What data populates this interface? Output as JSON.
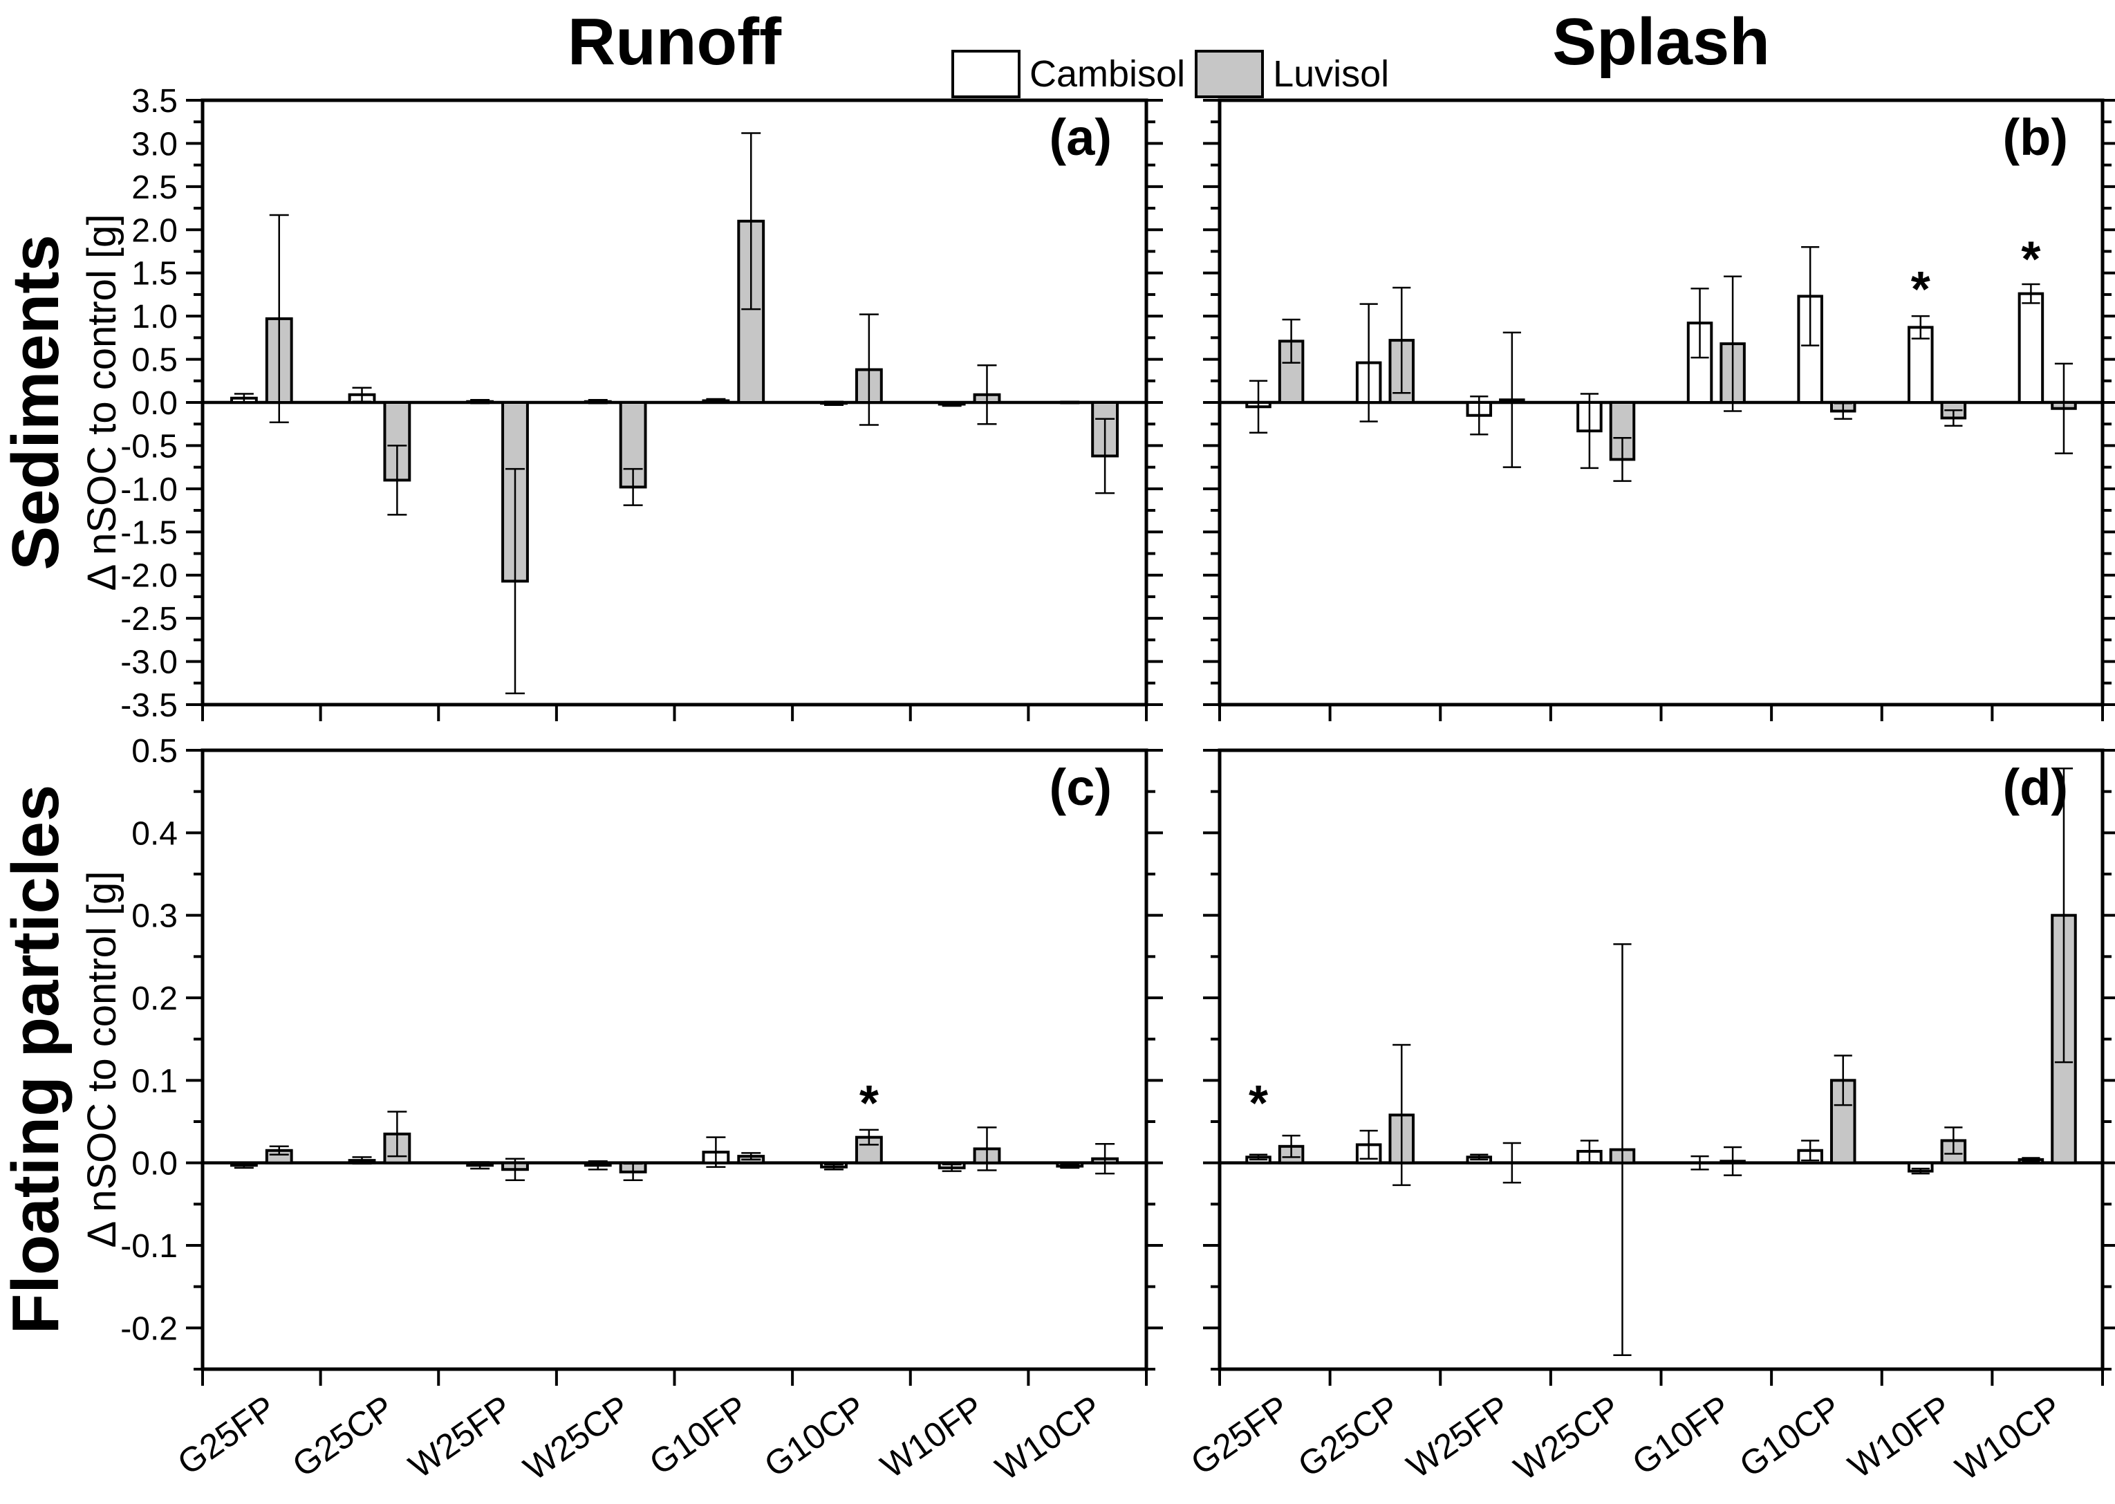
{
  "titles": {
    "left": "Runoff",
    "right": "Splash"
  },
  "legend": {
    "items": [
      {
        "label": "Cambisol",
        "fill": "#ffffff"
      },
      {
        "label": "Luvisol",
        "fill": "#c6c6c6"
      }
    ]
  },
  "row_labels": [
    "Sediments",
    "Floating particles"
  ],
  "ylabel": "Δ nSOC to control [g]",
  "chart_data": {
    "type": "bar",
    "categories": [
      "G25FP",
      "G25CP",
      "W25FP",
      "W25CP",
      "G10FP",
      "G10CP",
      "W10FP",
      "W10CP"
    ],
    "series_names": [
      "Cambisol",
      "Luvisol"
    ],
    "series_fills": {
      "Cambisol": "#ffffff",
      "Luvisol": "#c6c6c6"
    },
    "grid": "off",
    "legend_position": "top-center",
    "panels": [
      {
        "id": "a",
        "label": "(a)",
        "row": "Sediments",
        "col": "Runoff",
        "ylim": [
          -3.5,
          3.5
        ],
        "ymajor": 0.5,
        "yminor": 0.25,
        "ytick_labels": true,
        "ylabel_min": -3.5,
        "cat_labels": false,
        "series": [
          {
            "name": "Cambisol",
            "values": [
              0.05,
              0.09,
              0.01,
              0.01,
              0.02,
              -0.01,
              -0.02,
              0.0
            ],
            "errors": [
              0.05,
              0.08,
              0.02,
              0.02,
              0.02,
              0.02,
              0.02,
              0.01
            ]
          },
          {
            "name": "Luvisol",
            "values": [
              0.97,
              -0.9,
              -2.07,
              -0.98,
              2.1,
              0.38,
              0.09,
              -0.62
            ],
            "errors": [
              1.2,
              0.4,
              1.3,
              0.21,
              1.02,
              0.64,
              0.34,
              0.43
            ]
          }
        ],
        "stars": []
      },
      {
        "id": "b",
        "label": "(b)",
        "row": "Sediments",
        "col": "Splash",
        "ylim": [
          -3.5,
          3.5
        ],
        "ymajor": 0.5,
        "yminor": 0.25,
        "ytick_labels": false,
        "ylabel_min": -3.5,
        "cat_labels": false,
        "series": [
          {
            "name": "Cambisol",
            "values": [
              -0.05,
              0.46,
              -0.15,
              -0.33,
              0.92,
              1.23,
              0.87,
              1.26
            ],
            "errors": [
              0.3,
              0.68,
              0.22,
              0.43,
              0.4,
              0.57,
              0.13,
              0.11
            ]
          },
          {
            "name": "Luvisol",
            "values": [
              0.71,
              0.72,
              0.03,
              -0.66,
              0.68,
              -0.1,
              -0.18,
              -0.07
            ],
            "errors": [
              0.25,
              0.61,
              0.78,
              0.25,
              0.78,
              0.09,
              0.09,
              0.52
            ]
          }
        ],
        "stars": [
          {
            "category": "W10FP",
            "series": "Cambisol",
            "y": 1.4
          },
          {
            "category": "W10CP",
            "series": "Cambisol",
            "y": 1.75
          }
        ]
      },
      {
        "id": "c",
        "label": "(c)",
        "row": "Floating particles",
        "col": "Runoff",
        "ylim": [
          -0.25,
          0.5
        ],
        "ymajor": 0.1,
        "yminor": 0.05,
        "ytick_labels": true,
        "ylabel_min": -0.2,
        "cat_labels": true,
        "series": [
          {
            "name": "Cambisol",
            "values": [
              -0.003,
              0.003,
              -0.003,
              -0.003,
              0.013,
              -0.005,
              -0.006,
              -0.004
            ],
            "errors": [
              0.003,
              0.004,
              0.004,
              0.005,
              0.018,
              0.003,
              0.004,
              0.002
            ]
          },
          {
            "name": "Luvisol",
            "values": [
              0.015,
              0.035,
              -0.008,
              -0.011,
              0.008,
              0.031,
              0.017,
              0.005
            ],
            "errors": [
              0.005,
              0.027,
              0.013,
              0.01,
              0.004,
              0.009,
              0.026,
              0.018
            ]
          }
        ],
        "stars": [
          {
            "category": "G10CP",
            "series": "Luvisol",
            "y": 0.082
          }
        ]
      },
      {
        "id": "d",
        "label": "(d)",
        "row": "Floating particles",
        "col": "Splash",
        "ylim": [
          -0.25,
          0.5
        ],
        "ymajor": 0.1,
        "yminor": 0.05,
        "ytick_labels": false,
        "ylabel_min": -0.2,
        "cat_labels": true,
        "series": [
          {
            "name": "Cambisol",
            "values": [
              0.007,
              0.022,
              0.007,
              0.014,
              0.0,
              0.015,
              -0.01,
              0.004
            ],
            "errors": [
              0.003,
              0.017,
              0.003,
              0.013,
              0.008,
              0.012,
              0.003,
              0.002
            ]
          },
          {
            "name": "Luvisol",
            "values": [
              0.02,
              0.058,
              0.0,
              0.016,
              0.002,
              0.1,
              0.027,
              0.3
            ],
            "errors": [
              0.013,
              0.085,
              0.024,
              0.249,
              0.017,
              0.03,
              0.016,
              0.178
            ]
          }
        ],
        "stars": [
          {
            "category": "G25FP",
            "series": "Cambisol",
            "y": 0.082
          }
        ]
      }
    ]
  }
}
